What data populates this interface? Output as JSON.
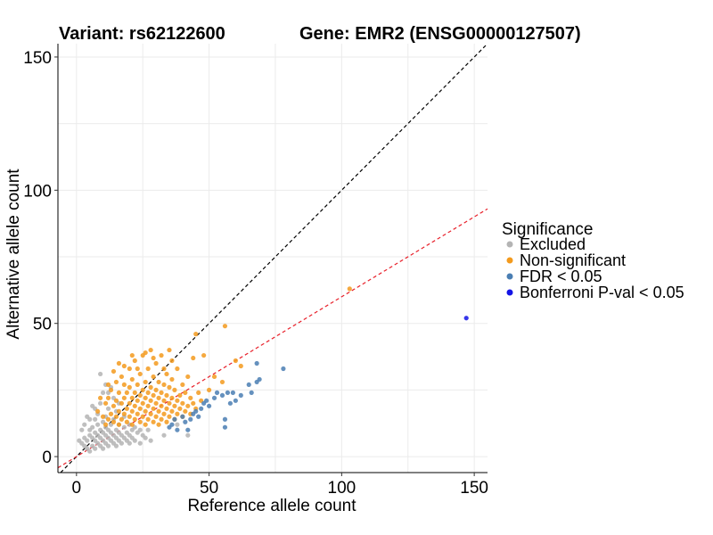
{
  "chart_data": {
    "type": "scatter",
    "title_left": "Variant: rs62122600",
    "title_right": "Gene: EMR2 (ENSG00000127507)",
    "xlabel": "Reference allele count",
    "ylabel": "Alternative allele count",
    "xlim": [
      -7,
      155
    ],
    "ylim": [
      -6,
      155
    ],
    "xticks": [
      0,
      50,
      100,
      150
    ],
    "yticks": [
      0,
      50,
      100,
      150
    ],
    "grid": true,
    "legend": {
      "title": "Significance",
      "position": "right",
      "items": [
        {
          "key": "excluded",
          "label": "Excluded",
          "color": "#b4b4b4"
        },
        {
          "key": "nonsig",
          "label": "Non-significant",
          "color": "#f39a1d"
        },
        {
          "key": "fdr",
          "label": "FDR < 0.05",
          "color": "#4a7eb3"
        },
        {
          "key": "bonf",
          "label": "Bonferroni P-val < 0.05",
          "color": "#1414e6"
        }
      ]
    },
    "reference_lines": [
      {
        "name": "identity-line",
        "slope": 1.0,
        "intercept": 0,
        "color": "#000000",
        "dash": true
      },
      {
        "name": "fit-line",
        "slope": 0.6,
        "intercept": 0,
        "color": "#e8202a",
        "dash": true
      }
    ],
    "series": [
      {
        "name": "Excluded",
        "key": "excluded",
        "points": [
          [
            2,
            5
          ],
          [
            3,
            4
          ],
          [
            3,
            7
          ],
          [
            4,
            3
          ],
          [
            4,
            6
          ],
          [
            5,
            2
          ],
          [
            5,
            8
          ],
          [
            5,
            10
          ],
          [
            6,
            4
          ],
          [
            6,
            7
          ],
          [
            6,
            11
          ],
          [
            7,
            3
          ],
          [
            7,
            6
          ],
          [
            7,
            9
          ],
          [
            7,
            14
          ],
          [
            8,
            5
          ],
          [
            8,
            8
          ],
          [
            8,
            12
          ],
          [
            8,
            16
          ],
          [
            9,
            4
          ],
          [
            9,
            7
          ],
          [
            9,
            10
          ],
          [
            9,
            20
          ],
          [
            10,
            3
          ],
          [
            10,
            6
          ],
          [
            10,
            9
          ],
          [
            10,
            13
          ],
          [
            10,
            24
          ],
          [
            11,
            5
          ],
          [
            11,
            8
          ],
          [
            11,
            11
          ],
          [
            11,
            15
          ],
          [
            12,
            4
          ],
          [
            12,
            7
          ],
          [
            12,
            10
          ],
          [
            12,
            18
          ],
          [
            13,
            6
          ],
          [
            13,
            9
          ],
          [
            13,
            12
          ],
          [
            14,
            5
          ],
          [
            14,
            8
          ],
          [
            14,
            14
          ],
          [
            15,
            4
          ],
          [
            15,
            7
          ],
          [
            15,
            10
          ],
          [
            15,
            17
          ],
          [
            16,
            6
          ],
          [
            16,
            9
          ],
          [
            16,
            12
          ],
          [
            17,
            5
          ],
          [
            17,
            8
          ],
          [
            18,
            7
          ],
          [
            18,
            11
          ],
          [
            19,
            6
          ],
          [
            19,
            9
          ],
          [
            20,
            5
          ],
          [
            20,
            8
          ],
          [
            21,
            7
          ],
          [
            21,
            10
          ],
          [
            22,
            6
          ],
          [
            23,
            9
          ],
          [
            24,
            5
          ],
          [
            25,
            8
          ],
          [
            26,
            7
          ],
          [
            27,
            10
          ],
          [
            28,
            6
          ],
          [
            9,
            31
          ],
          [
            11,
            27
          ],
          [
            13,
            26
          ],
          [
            6,
            19
          ],
          [
            4,
            15
          ],
          [
            33,
            8
          ],
          [
            38,
            12
          ],
          [
            42,
            8
          ],
          [
            2,
            10
          ],
          [
            1,
            6
          ],
          [
            3,
            12
          ],
          [
            5,
            14
          ],
          [
            7,
            18
          ],
          [
            12,
            24
          ],
          [
            14,
            22
          ],
          [
            16,
            20
          ],
          [
            18,
            15
          ],
          [
            20,
            12
          ],
          [
            22,
            11
          ],
          [
            24,
            10
          ]
        ]
      },
      {
        "name": "Non-significant",
        "key": "nonsig",
        "points": [
          [
            10,
            15
          ],
          [
            11,
            12
          ],
          [
            11,
            20
          ],
          [
            12,
            14
          ],
          [
            12,
            22
          ],
          [
            13,
            16
          ],
          [
            13,
            25
          ],
          [
            14,
            13
          ],
          [
            14,
            19
          ],
          [
            15,
            15
          ],
          [
            15,
            21
          ],
          [
            15,
            28
          ],
          [
            16,
            12
          ],
          [
            16,
            17
          ],
          [
            16,
            24
          ],
          [
            17,
            14
          ],
          [
            17,
            20
          ],
          [
            17,
            30
          ],
          [
            18,
            16
          ],
          [
            18,
            22
          ],
          [
            18,
            27
          ],
          [
            19,
            13
          ],
          [
            19,
            18
          ],
          [
            19,
            24
          ],
          [
            20,
            15
          ],
          [
            20,
            20
          ],
          [
            20,
            26
          ],
          [
            20,
            33
          ],
          [
            21,
            12
          ],
          [
            21,
            17
          ],
          [
            21,
            22
          ],
          [
            21,
            29
          ],
          [
            22,
            14
          ],
          [
            22,
            19
          ],
          [
            22,
            24
          ],
          [
            22,
            36
          ],
          [
            23,
            16
          ],
          [
            23,
            21
          ],
          [
            23,
            27
          ],
          [
            24,
            13
          ],
          [
            24,
            18
          ],
          [
            24,
            23
          ],
          [
            24,
            31
          ],
          [
            25,
            15
          ],
          [
            25,
            20
          ],
          [
            25,
            25
          ],
          [
            25,
            38
          ],
          [
            26,
            12
          ],
          [
            26,
            17
          ],
          [
            26,
            22
          ],
          [
            26,
            28
          ],
          [
            27,
            14
          ],
          [
            27,
            19
          ],
          [
            27,
            24
          ],
          [
            27,
            33
          ],
          [
            28,
            16
          ],
          [
            28,
            21
          ],
          [
            28,
            26
          ],
          [
            28,
            40
          ],
          [
            29,
            13
          ],
          [
            29,
            18
          ],
          [
            29,
            23
          ],
          [
            29,
            30
          ],
          [
            30,
            15
          ],
          [
            30,
            20
          ],
          [
            30,
            25
          ],
          [
            30,
            35
          ],
          [
            31,
            12
          ],
          [
            31,
            17
          ],
          [
            31,
            22
          ],
          [
            31,
            28
          ],
          [
            32,
            14
          ],
          [
            32,
            19
          ],
          [
            32,
            24
          ],
          [
            32,
            38
          ],
          [
            33,
            16
          ],
          [
            33,
            21
          ],
          [
            33,
            27
          ],
          [
            34,
            13
          ],
          [
            34,
            18
          ],
          [
            34,
            23
          ],
          [
            34,
            31
          ],
          [
            35,
            15
          ],
          [
            35,
            20
          ],
          [
            35,
            26
          ],
          [
            35,
            40
          ],
          [
            36,
            17
          ],
          [
            36,
            22
          ],
          [
            36,
            29
          ],
          [
            37,
            14
          ],
          [
            37,
            19
          ],
          [
            37,
            25
          ],
          [
            38,
            16
          ],
          [
            38,
            21
          ],
          [
            38,
            33
          ],
          [
            39,
            18
          ],
          [
            39,
            23
          ],
          [
            40,
            15
          ],
          [
            40,
            20
          ],
          [
            40,
            27
          ],
          [
            41,
            17
          ],
          [
            41,
            24
          ],
          [
            42,
            19
          ],
          [
            42,
            30
          ],
          [
            43,
            16
          ],
          [
            43,
            22
          ],
          [
            44,
            20
          ],
          [
            44,
            37
          ],
          [
            45,
            18
          ],
          [
            45,
            46
          ],
          [
            46,
            24
          ],
          [
            47,
            21
          ],
          [
            48,
            38
          ],
          [
            50,
            25
          ],
          [
            52,
            30
          ],
          [
            55,
            28
          ],
          [
            56,
            49
          ],
          [
            60,
            36
          ],
          [
            62,
            34
          ],
          [
            103,
            63
          ],
          [
            12,
            27
          ],
          [
            14,
            32
          ],
          [
            16,
            35
          ],
          [
            18,
            34
          ],
          [
            21,
            38
          ],
          [
            23,
            33
          ],
          [
            26,
            39
          ],
          [
            29,
            37
          ],
          [
            33,
            33
          ],
          [
            36,
            36
          ],
          [
            8,
            17
          ],
          [
            9,
            22
          ]
        ]
      },
      {
        "name": "FDR < 0.05",
        "key": "fdr",
        "points": [
          [
            35,
            11
          ],
          [
            36,
            12
          ],
          [
            37,
            14
          ],
          [
            38,
            10
          ],
          [
            40,
            15
          ],
          [
            41,
            13
          ],
          [
            43,
            14
          ],
          [
            44,
            16
          ],
          [
            45,
            17
          ],
          [
            47,
            18
          ],
          [
            48,
            20
          ],
          [
            49,
            21
          ],
          [
            50,
            19
          ],
          [
            52,
            22
          ],
          [
            53,
            24
          ],
          [
            55,
            23
          ],
          [
            56,
            11
          ],
          [
            56,
            14
          ],
          [
            57,
            24
          ],
          [
            58,
            20
          ],
          [
            59,
            24
          ],
          [
            60,
            21
          ],
          [
            62,
            23
          ],
          [
            65,
            27
          ],
          [
            66,
            24
          ],
          [
            68,
            28
          ],
          [
            68,
            35
          ],
          [
            69,
            29
          ],
          [
            78,
            33
          ],
          [
            42,
            10
          ],
          [
            46,
            15
          ]
        ]
      },
      {
        "name": "Bonferroni P-val < 0.05",
        "key": "bonf",
        "points": [
          [
            147,
            52
          ]
        ]
      }
    ]
  }
}
